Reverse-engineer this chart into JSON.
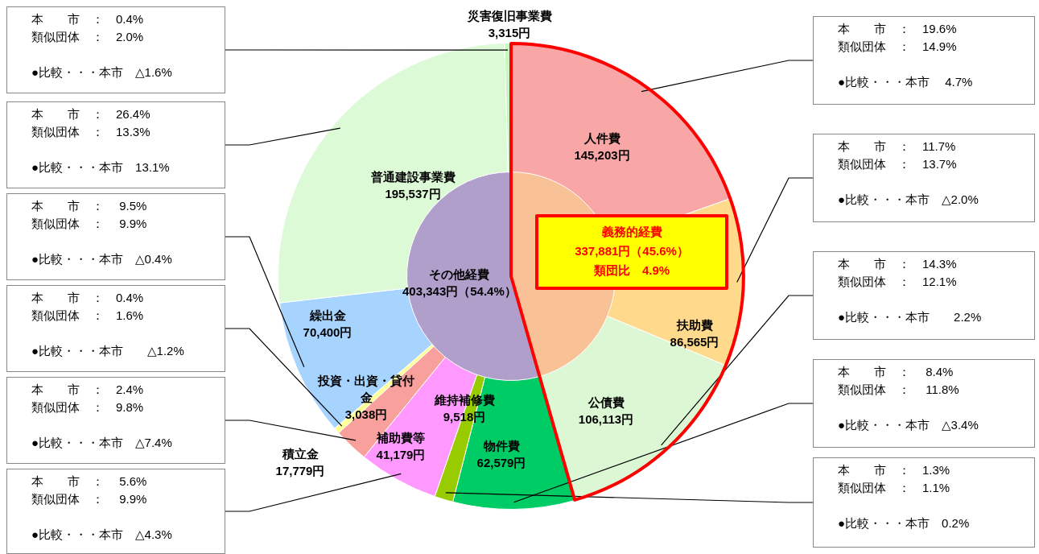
{
  "chart_data": [
    {
      "type": "pie",
      "categories": [
        "人件費",
        "扶助費",
        "公債費",
        "物件費",
        "維持補修費",
        "補助費等",
        "積立金",
        "投資・出資・貸付金",
        "繰出金",
        "普通建設事業費",
        "災害復旧事業費"
      ],
      "values": [
        145203,
        86565,
        106113,
        62579,
        9518,
        41179,
        17779,
        3038,
        70400,
        195537,
        3315
      ],
      "colors": [
        "#f8a6a6",
        "#ffd98c",
        "#dcf7d4",
        "#00cc66",
        "#99cc00",
        "#ff99ff",
        "#f7a09c",
        "#ffff99",
        "#a6d4ff",
        "#dcfad6",
        "#c8f5c0"
      ],
      "value_labels": [
        "145,203円",
        "86,565円",
        "106,113円",
        "62,579円",
        "9,518円",
        "41,179円",
        "17,779円",
        "3,038円",
        "70,400円",
        "195,537円",
        "3,315円"
      ],
      "annotations": [
        "本　　市　：　19.6%\n類似団体　：　14.9%\n\n●比較・・・本市　 4.7%",
        "本　　市　：　11.7%\n類似団体　：　13.7%\n\n●比較・・・本市　△2.0%",
        "本　　市　：　14.3%\n類似団体　：　12.1%\n\n●比較・・・本市　　2.2%",
        "本　　市　：　 8.4%\n類似団体　：　 11.8%\n\n●比較・・・本市　△3.4%",
        "本　　市　：　1.3%\n類似団体　：　1.1%\n\n●比較・・・本市　0.2%",
        "本　　市　：　 5.6%\n類似団体　：　 9.9%\n\n●比較・・・本市　△4.3%",
        "本　　市　：　2.4%\n類似団体　：　9.8%\n\n●比較・・・本市　△7.4%",
        "本　　市　：　0.4%\n類似団体　：　1.6%\n\n●比較・・・本市　　△1.2%",
        "本　　市　：　 9.5%\n類似団体　：　 9.9%\n\n●比較・・・本市　△0.4%",
        "本　　市　：　26.4%\n類似団体　：　13.3%\n\n●比較・・・本市　13.1%",
        "本　　市　：　0.4%\n類似団体　：　2.0%\n\n●比較・・・本市　△1.6%"
      ],
      "legend": false
    },
    {
      "type": "pie",
      "categories": [
        "義務的経費",
        "その他経費"
      ],
      "values": [
        337881,
        403343
      ],
      "colors": [
        "#f9c196",
        "#b09fca"
      ],
      "value_labels": [
        "337,881円（45.6%）",
        "403,343円（54.4%）"
      ],
      "annotations": [
        "類団比　4.9%"
      ],
      "legend": false
    }
  ]
}
